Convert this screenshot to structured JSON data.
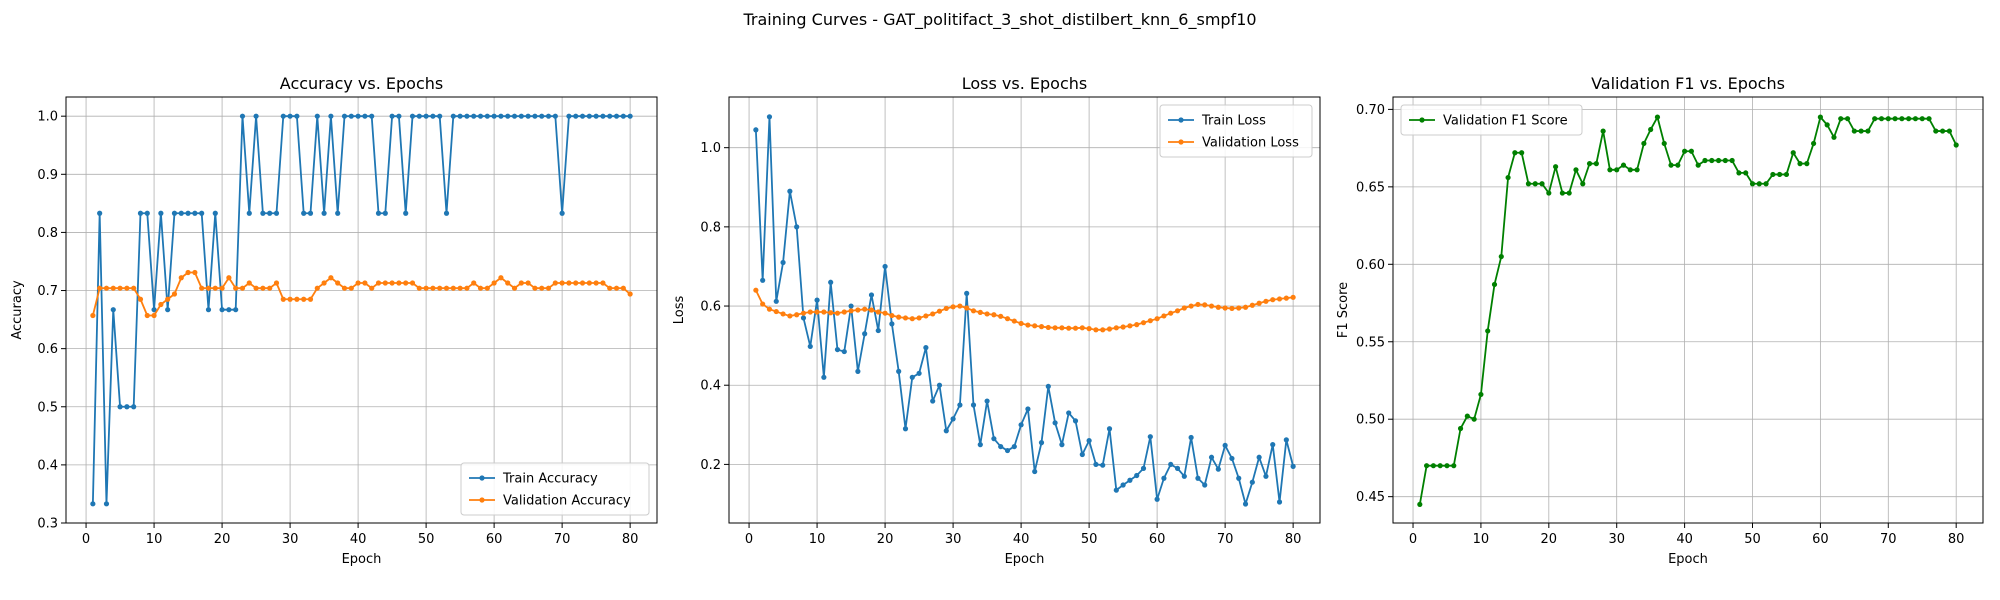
{
  "suptitle": "Training Curves - GAT_politifact_3_shot_distilbert_knn_6_smpf10",
  "colors": {
    "blue": "#1f77b4",
    "orange": "#ff7f0e",
    "green": "#008000",
    "grid": "#b0b0b0"
  },
  "chart_data": [
    {
      "type": "line",
      "title": "Accuracy vs. Epochs",
      "xlabel": "Epoch",
      "ylabel": "Accuracy",
      "xlim": [
        -2.95,
        83.95
      ],
      "ylim": [
        0.3,
        1.033
      ],
      "xticks": [
        0,
        10,
        20,
        30,
        40,
        50,
        60,
        70,
        80
      ],
      "yticks": [
        0.3,
        0.4,
        0.5,
        0.6,
        0.7,
        0.8,
        0.9,
        1.0
      ],
      "ytick_labels": [
        "0.3",
        "0.4",
        "0.5",
        "0.6",
        "0.7",
        "0.8",
        "0.9",
        "1.0"
      ],
      "grid": true,
      "legend": "lower right",
      "series": [
        {
          "name": "Train Accuracy",
          "color": "#1f77b4",
          "values": [
            0.333,
            0.833,
            0.333,
            0.667,
            0.5,
            0.5,
            0.5,
            0.833,
            0.833,
            0.667,
            0.833,
            0.667,
            0.833,
            0.833,
            0.833,
            0.833,
            0.833,
            0.667,
            0.833,
            0.667,
            0.667,
            0.667,
            1.0,
            0.833,
            1.0,
            0.833,
            0.833,
            0.833,
            1.0,
            1.0,
            1.0,
            0.833,
            0.833,
            1.0,
            0.833,
            1.0,
            0.833,
            1.0,
            1.0,
            1.0,
            1.0,
            1.0,
            0.833,
            0.833,
            1.0,
            1.0,
            0.833,
            1.0,
            1.0,
            1.0,
            1.0,
            1.0,
            0.833,
            1.0,
            1.0,
            1.0,
            1.0,
            1.0,
            1.0,
            1.0,
            1.0,
            1.0,
            1.0,
            1.0,
            1.0,
            1.0,
            1.0,
            1.0,
            1.0,
            0.833,
            1.0,
            1.0,
            1.0,
            1.0,
            1.0,
            1.0,
            1.0,
            1.0,
            1.0,
            1.0
          ]
        },
        {
          "name": "Validation Accuracy",
          "color": "#ff7f0e",
          "values": [
            0.657,
            0.704,
            0.704,
            0.704,
            0.704,
            0.704,
            0.704,
            0.685,
            0.657,
            0.657,
            0.676,
            0.685,
            0.694,
            0.722,
            0.731,
            0.731,
            0.704,
            0.704,
            0.704,
            0.704,
            0.722,
            0.704,
            0.704,
            0.713,
            0.704,
            0.704,
            0.704,
            0.713,
            0.685,
            0.685,
            0.685,
            0.685,
            0.685,
            0.704,
            0.713,
            0.722,
            0.713,
            0.704,
            0.704,
            0.713,
            0.713,
            0.704,
            0.713,
            0.713,
            0.713,
            0.713,
            0.713,
            0.713,
            0.704,
            0.704,
            0.704,
            0.704,
            0.704,
            0.704,
            0.704,
            0.704,
            0.713,
            0.704,
            0.704,
            0.713,
            0.722,
            0.713,
            0.704,
            0.713,
            0.713,
            0.704,
            0.704,
            0.704,
            0.713,
            0.713,
            0.713,
            0.713,
            0.713,
            0.713,
            0.713,
            0.713,
            0.704,
            0.704,
            0.704,
            0.694
          ]
        }
      ]
    },
    {
      "type": "line",
      "title": "Loss vs. Epochs",
      "xlabel": "Epoch",
      "ylabel": "Loss",
      "xlim": [
        -2.95,
        83.95
      ],
      "ylim": [
        0.052,
        1.128
      ],
      "xticks": [
        0,
        10,
        20,
        30,
        40,
        50,
        60,
        70,
        80
      ],
      "yticks": [
        0.2,
        0.4,
        0.6,
        0.8,
        1.0
      ],
      "ytick_labels": [
        "0.2",
        "0.4",
        "0.6",
        "0.8",
        "1.0"
      ],
      "grid": true,
      "legend": "upper right",
      "series": [
        {
          "name": "Train Loss",
          "color": "#1f77b4",
          "values": [
            1.045,
            0.665,
            1.078,
            0.612,
            0.71,
            0.89,
            0.8,
            0.57,
            0.498,
            0.615,
            0.42,
            0.66,
            0.49,
            0.485,
            0.6,
            0.435,
            0.53,
            0.628,
            0.538,
            0.7,
            0.555,
            0.435,
            0.29,
            0.42,
            0.43,
            0.495,
            0.36,
            0.4,
            0.285,
            0.315,
            0.35,
            0.632,
            0.35,
            0.25,
            0.36,
            0.265,
            0.245,
            0.235,
            0.245,
            0.3,
            0.34,
            0.182,
            0.255,
            0.397,
            0.305,
            0.25,
            0.33,
            0.31,
            0.225,
            0.26,
            0.2,
            0.198,
            0.29,
            0.135,
            0.148,
            0.16,
            0.172,
            0.19,
            0.27,
            0.112,
            0.165,
            0.2,
            0.19,
            0.17,
            0.268,
            0.165,
            0.148,
            0.218,
            0.188,
            0.248,
            0.215,
            0.165,
            0.1,
            0.155,
            0.218,
            0.17,
            0.25,
            0.105,
            0.262,
            0.195
          ]
        },
        {
          "name": "Validation Loss",
          "color": "#ff7f0e",
          "values": [
            0.64,
            0.605,
            0.592,
            0.586,
            0.58,
            0.575,
            0.578,
            0.582,
            0.585,
            0.585,
            0.585,
            0.583,
            0.582,
            0.585,
            0.588,
            0.59,
            0.592,
            0.59,
            0.585,
            0.582,
            0.576,
            0.572,
            0.57,
            0.568,
            0.57,
            0.575,
            0.58,
            0.587,
            0.594,
            0.598,
            0.6,
            0.595,
            0.588,
            0.584,
            0.58,
            0.578,
            0.574,
            0.568,
            0.562,
            0.556,
            0.552,
            0.55,
            0.548,
            0.546,
            0.545,
            0.545,
            0.544,
            0.544,
            0.545,
            0.543,
            0.54,
            0.54,
            0.542,
            0.545,
            0.547,
            0.55,
            0.553,
            0.558,
            0.563,
            0.568,
            0.575,
            0.582,
            0.588,
            0.595,
            0.6,
            0.604,
            0.603,
            0.6,
            0.597,
            0.595,
            0.594,
            0.595,
            0.597,
            0.602,
            0.607,
            0.612,
            0.616,
            0.618,
            0.62,
            0.622
          ]
        }
      ]
    },
    {
      "type": "line",
      "title": "Validation F1 vs. Epochs",
      "xlabel": "Epoch",
      "ylabel": "F1 Score",
      "xlim": [
        -2.95,
        83.95
      ],
      "ylim": [
        0.433,
        0.708
      ],
      "xticks": [
        0,
        10,
        20,
        30,
        40,
        50,
        60,
        70,
        80
      ],
      "yticks": [
        0.45,
        0.5,
        0.55,
        0.6,
        0.65,
        0.7
      ],
      "ytick_labels": [
        "0.45",
        "0.50",
        "0.55",
        "0.60",
        "0.65",
        "0.70"
      ],
      "grid": true,
      "legend": "upper left",
      "series": [
        {
          "name": "Validation F1 Score",
          "color": "#008000",
          "values": [
            0.445,
            0.47,
            0.47,
            0.47,
            0.47,
            0.47,
            0.494,
            0.502,
            0.5,
            0.516,
            0.557,
            0.587,
            0.605,
            0.656,
            0.672,
            0.672,
            0.652,
            0.652,
            0.652,
            0.646,
            0.663,
            0.646,
            0.646,
            0.661,
            0.652,
            0.665,
            0.665,
            0.686,
            0.661,
            0.661,
            0.664,
            0.661,
            0.661,
            0.678,
            0.687,
            0.695,
            0.678,
            0.664,
            0.664,
            0.673,
            0.673,
            0.664,
            0.667,
            0.667,
            0.667,
            0.667,
            0.667,
            0.659,
            0.659,
            0.652,
            0.652,
            0.652,
            0.658,
            0.658,
            0.658,
            0.672,
            0.665,
            0.665,
            0.678,
            0.695,
            0.69,
            0.682,
            0.694,
            0.694,
            0.686,
            0.686,
            0.686,
            0.694,
            0.694,
            0.694,
            0.694,
            0.694,
            0.694,
            0.694,
            0.694,
            0.694,
            0.686,
            0.686,
            0.686,
            0.677
          ]
        }
      ]
    }
  ]
}
